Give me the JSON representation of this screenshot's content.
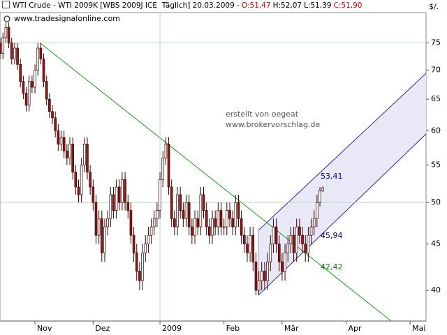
{
  "chart_data": {
    "type": "candlestick",
    "title": "WTI Crude - WTI 2009K [WBS 2009J ICE  Täglich] 20.03.2009 -",
    "quote": [
      "O:51,47",
      "H:52,07",
      "L:51,39",
      "C:51,90"
    ],
    "watermark": "www.tradesignalonline.com",
    "notes": [
      "erstellt von oegeat",
      "www.brokervorschlag.de"
    ],
    "unit": "$/.",
    "categories": [
      null,
      null,
      null,
      null,
      null,
      null,
      null,
      null,
      null,
      null,
      null,
      null,
      "Nov",
      null,
      null,
      null,
      null,
      null,
      null,
      null,
      null,
      null,
      null,
      null,
      null,
      null,
      null,
      null,
      null,
      null,
      null,
      null,
      "Dez",
      null,
      null,
      null,
      null,
      null,
      null,
      null,
      null,
      null,
      null,
      null,
      null,
      null,
      null,
      null,
      null,
      null,
      null,
      null,
      null,
      null,
      null,
      "2009",
      null,
      null,
      null,
      null,
      null,
      null,
      null,
      null,
      null,
      null,
      null,
      null,
      null,
      null,
      null,
      null,
      null,
      null,
      null,
      null,
      null,
      "Feb",
      null,
      null,
      null,
      null,
      null,
      null,
      null,
      null,
      null,
      null,
      null,
      null,
      null,
      null,
      null,
      null,
      null,
      null,
      null,
      "Mär",
      null,
      null,
      null,
      null,
      null,
      null,
      null,
      null,
      null,
      null,
      null,
      null,
      null,
      null,
      null,
      null,
      null,
      null,
      null,
      null,
      null,
      "Apr",
      null,
      null,
      null,
      null,
      null,
      null,
      null,
      null,
      null,
      null,
      null,
      null,
      null,
      null,
      null,
      null,
      null,
      null,
      null,
      null,
      null,
      "Mai",
      null,
      null,
      null,
      null,
      null
    ],
    "open": [
      75,
      73,
      76,
      78,
      75,
      72,
      74,
      71,
      68,
      66,
      64,
      68,
      67,
      70,
      74,
      72,
      68,
      65,
      63,
      62,
      60,
      58,
      59,
      57,
      56,
      58,
      54,
      52,
      51,
      55,
      58,
      54,
      52,
      50,
      46,
      48,
      44,
      47,
      48,
      51,
      49,
      52,
      50,
      53,
      50,
      49,
      46,
      44,
      42,
      41,
      44,
      45,
      46,
      47,
      48,
      49,
      53,
      56,
      58,
      52,
      48,
      47,
      51,
      49,
      48,
      50,
      47,
      46,
      48,
      47,
      51,
      49,
      47,
      46,
      48,
      47,
      49,
      47,
      47,
      49,
      48,
      47,
      50,
      48,
      46,
      45,
      44,
      46,
      43,
      40,
      41,
      42,
      41,
      43,
      45,
      47,
      45,
      43,
      42,
      44,
      45,
      46,
      44,
      47,
      46,
      45,
      44,
      46,
      47,
      48,
      50,
      51.47,
      null,
      null,
      null,
      null,
      null,
      null,
      null,
      null,
      null,
      null,
      null,
      null,
      null,
      null,
      null,
      null,
      null,
      null,
      null,
      null,
      null,
      null,
      null,
      null,
      null,
      null,
      null,
      null,
      null,
      null,
      null,
      null,
      null,
      null,
      null
    ],
    "high": [
      76,
      77,
      79,
      79,
      76,
      75,
      75,
      72,
      69,
      67,
      69,
      69,
      71,
      75,
      75,
      73,
      69,
      66,
      64,
      63,
      61,
      60,
      60,
      58,
      59,
      59,
      55,
      53,
      56,
      59,
      59,
      55,
      53,
      51,
      49,
      49,
      48,
      49,
      52,
      52,
      53,
      53,
      54,
      54,
      51,
      50,
      47,
      45,
      43,
      45,
      46,
      47,
      48,
      49,
      50,
      54,
      57,
      59,
      59,
      53,
      49,
      52,
      52,
      50,
      51,
      51,
      48,
      49,
      49,
      52,
      52,
      50,
      48,
      49,
      49,
      50,
      50,
      48,
      50,
      50,
      49,
      51,
      51,
      49,
      47,
      46,
      47,
      47,
      44,
      42,
      43,
      43,
      44,
      46,
      48,
      48,
      46,
      44,
      45,
      46,
      47,
      47,
      48,
      48,
      47,
      46,
      47,
      48,
      49,
      51,
      52,
      52.07,
      null,
      null,
      null,
      null,
      null,
      null,
      null,
      null,
      null,
      null,
      null,
      null,
      null,
      null,
      null,
      null,
      null,
      null,
      null,
      null,
      null,
      null,
      null,
      null,
      null,
      null,
      null,
      null,
      null,
      null,
      null,
      null,
      null,
      null,
      null
    ],
    "low": [
      72,
      72,
      75,
      74,
      71,
      71,
      70,
      67,
      65,
      63,
      63,
      66,
      66,
      69,
      71,
      67,
      64,
      62,
      61,
      59,
      57,
      57,
      56,
      55,
      55,
      53,
      51,
      50,
      50,
      54,
      53,
      51,
      49,
      45,
      45,
      43,
      43,
      46,
      47,
      48,
      48,
      49,
      49,
      49,
      48,
      45,
      43,
      41,
      40,
      40,
      43,
      44,
      45,
      46,
      47,
      48,
      52,
      55,
      51,
      47,
      46,
      46,
      48,
      47,
      47,
      46,
      45,
      45,
      46,
      46,
      48,
      46,
      45,
      45,
      46,
      46,
      46,
      46,
      46,
      47,
      46,
      46,
      47,
      45,
      44,
      43,
      43,
      42,
      39.5,
      39.5,
      40,
      40,
      40,
      42,
      44,
      44,
      42,
      41,
      41,
      43,
      44,
      43,
      43,
      45,
      44,
      43,
      43,
      45,
      46,
      47,
      49.5,
      51.39,
      null,
      null,
      null,
      null,
      null,
      null,
      null,
      null,
      null,
      null,
      null,
      null,
      null,
      null,
      null,
      null,
      null,
      null,
      null,
      null,
      null,
      null,
      null,
      null,
      null,
      null,
      null,
      null,
      null,
      null,
      null,
      null,
      null,
      null,
      null
    ],
    "close": [
      73,
      76,
      78,
      75,
      72,
      74,
      71,
      68,
      66,
      64,
      68,
      67,
      70,
      74,
      72,
      68,
      65,
      63,
      62,
      60,
      58,
      59,
      57,
      56,
      58,
      54,
      52,
      51,
      55,
      58,
      54,
      52,
      50,
      46,
      48,
      44,
      47,
      48,
      51,
      49,
      52,
      50,
      53,
      50,
      49,
      46,
      44,
      42,
      41,
      44,
      45,
      46,
      47,
      48,
      49,
      53,
      56,
      58,
      52,
      48,
      47,
      51,
      49,
      48,
      50,
      47,
      46,
      48,
      47,
      51,
      49,
      47,
      46,
      48,
      47,
      49,
      47,
      47,
      49,
      48,
      47,
      50,
      48,
      46,
      45,
      44,
      46,
      43,
      40,
      41,
      42,
      41,
      43,
      45,
      47,
      45,
      43,
      42,
      44,
      45,
      46,
      44,
      47,
      46,
      45,
      44,
      46,
      47,
      48,
      50,
      51.5,
      51.9,
      null,
      null,
      null,
      null,
      null,
      null,
      null,
      null,
      null,
      null,
      null,
      null,
      null,
      null,
      null,
      null,
      null,
      null,
      null,
      null,
      null,
      null,
      null,
      null,
      null,
      null,
      null,
      null,
      null,
      null,
      null,
      null,
      null,
      null,
      null
    ],
    "up_color": "#ffffff",
    "down_color": "#8b1a1a",
    "outline_color": "#3a0000",
    "annotations": [
      {
        "text": "53,41",
        "value": 53.41,
        "color": "#000080"
      },
      {
        "text": "45,94",
        "value": 45.94,
        "color": "#000080"
      },
      {
        "text": "42,42",
        "value": 42.42,
        "color": "#008000"
      }
    ],
    "log_scale": true,
    "ylim": [
      37,
      81
    ],
    "yticks": [
      40,
      45,
      50,
      55,
      60,
      65,
      70,
      75
    ],
    "grid_lines": [
      75,
      50
    ]
  }
}
